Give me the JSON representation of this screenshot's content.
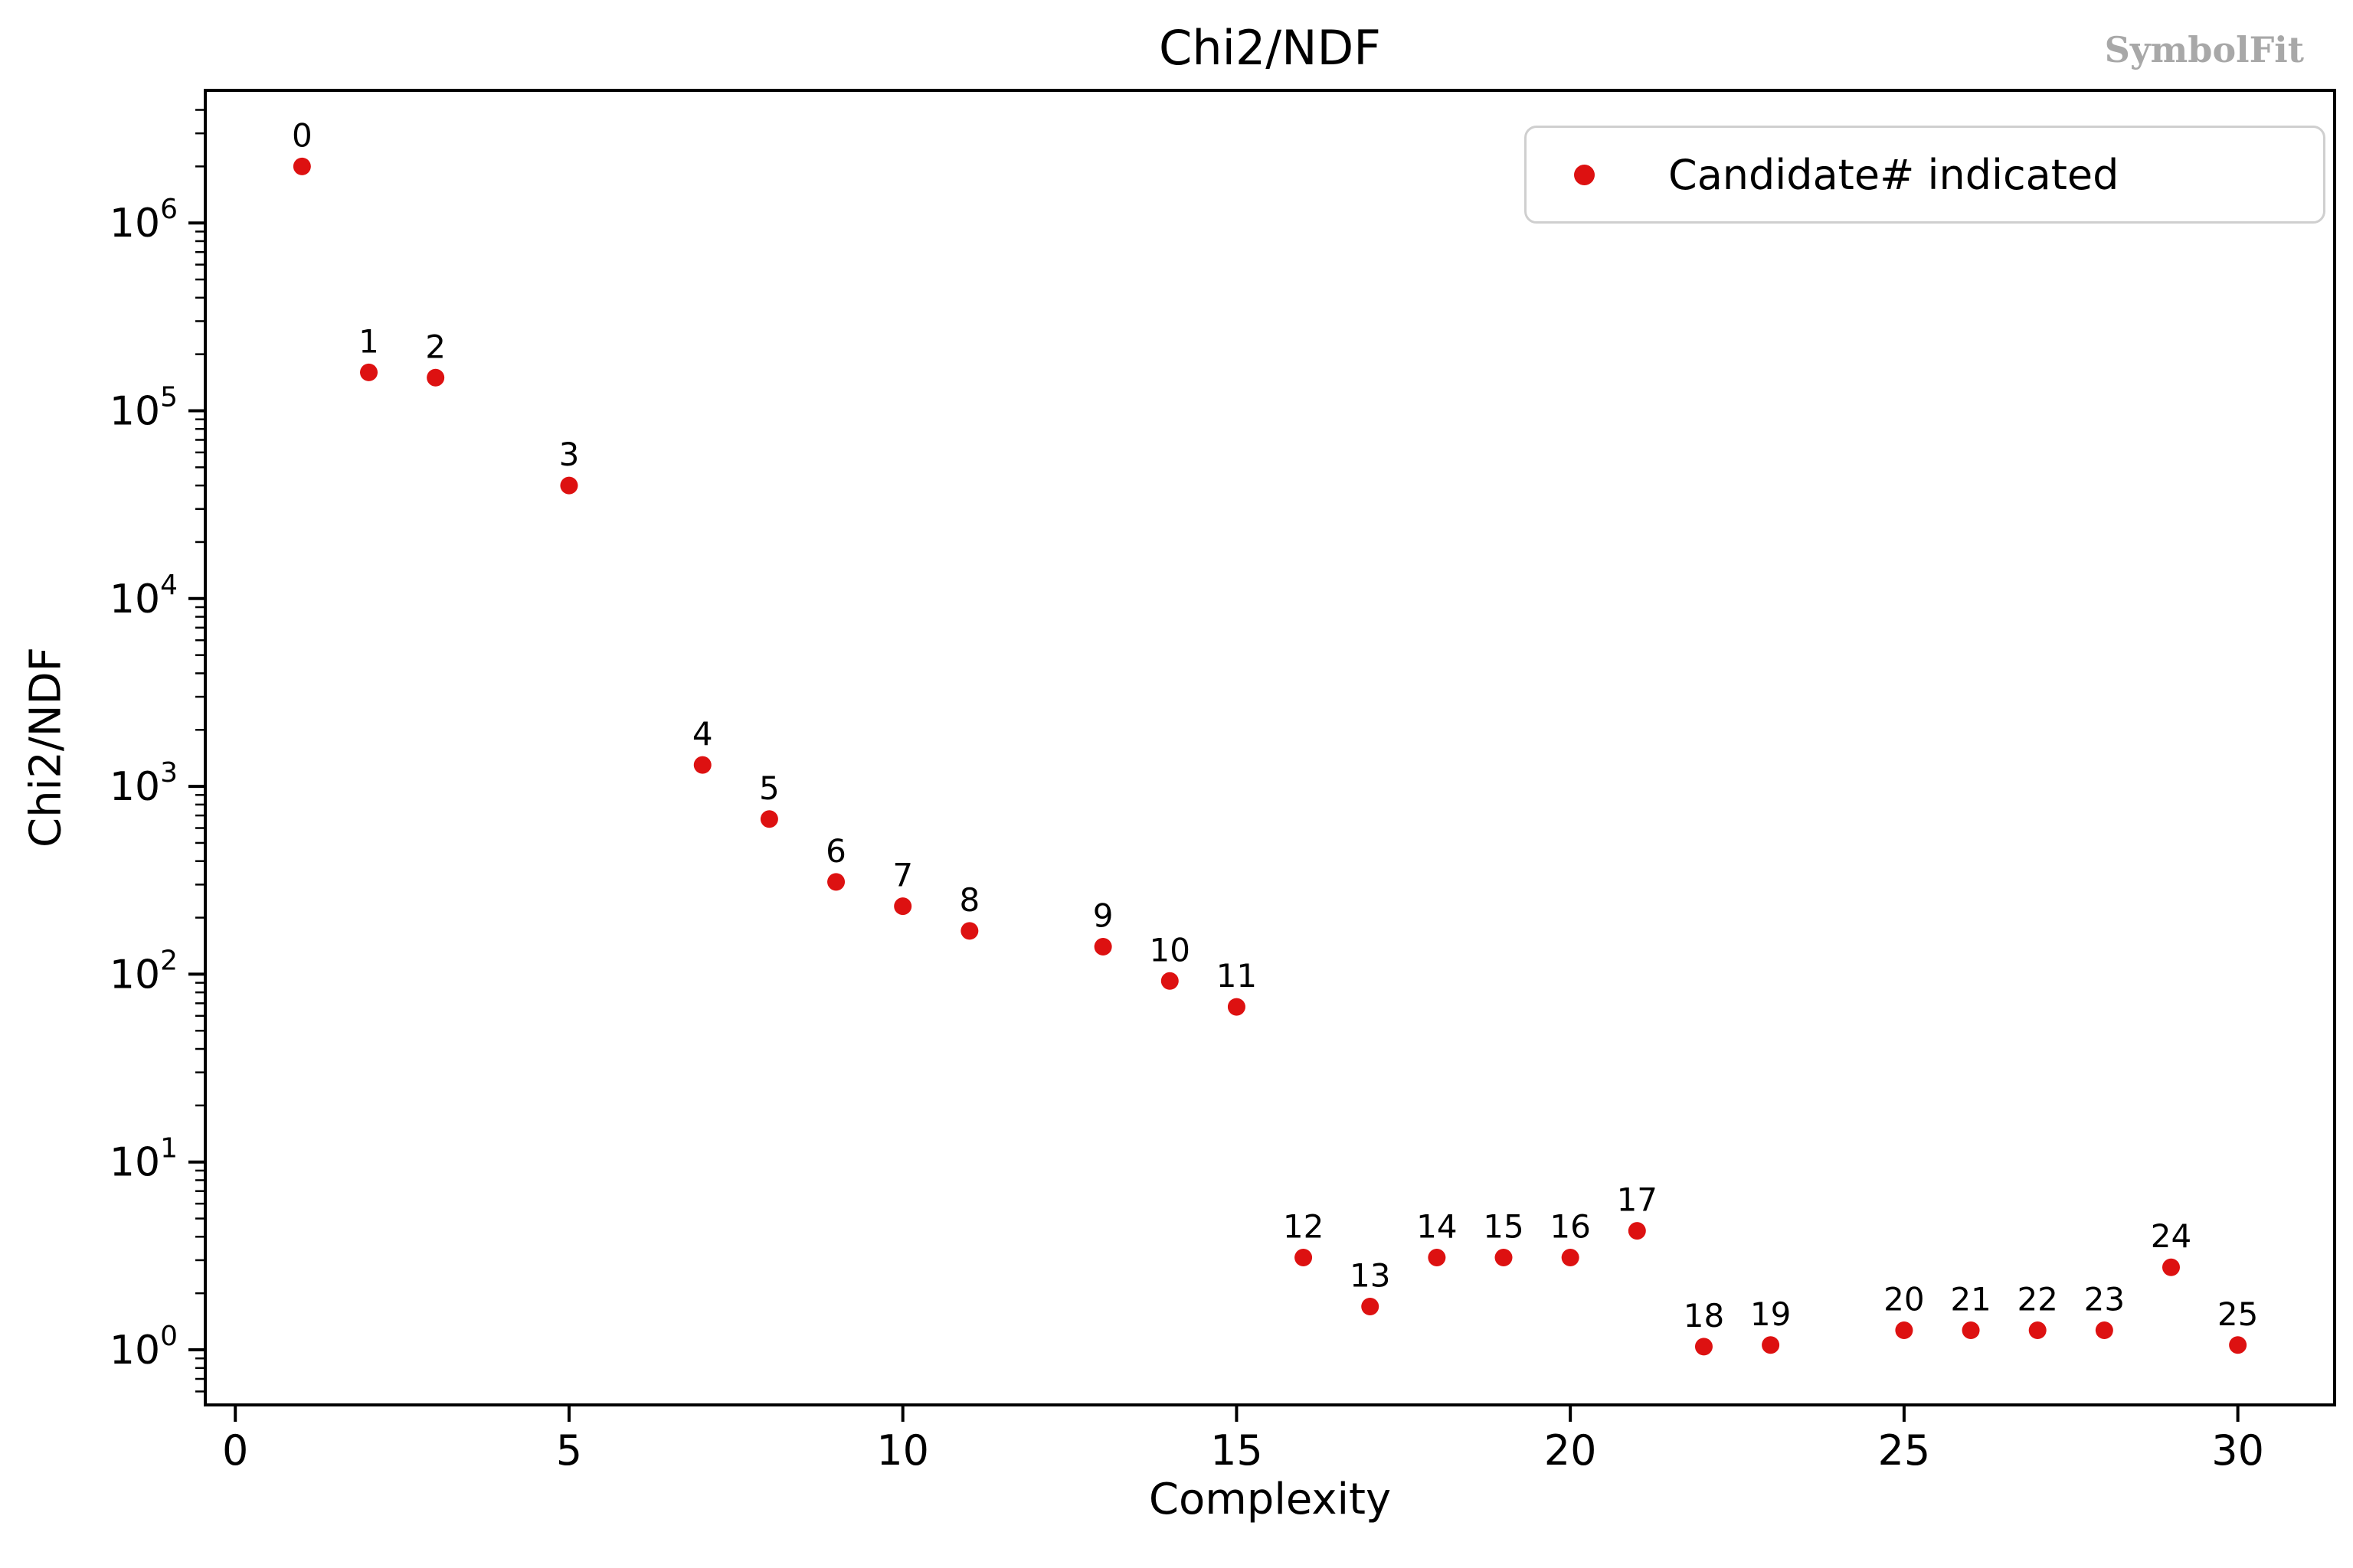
{
  "figure": {
    "title": "Chi2/NDF",
    "watermark": "SymbolFit"
  },
  "chart_data": {
    "type": "scatter",
    "title": "Chi2/NDF",
    "xlabel": "Complexity",
    "ylabel": "Chi2/NDF",
    "watermark": "SymbolFit",
    "yscale": "log",
    "grid": false,
    "legend": {
      "label": "Candidate# indicated",
      "position": "upper right",
      "marker": "red-dot"
    },
    "marker_color": "#dd1111",
    "xlim": [
      -0.45,
      31.45
    ],
    "ylim": [
      0.505,
      5100000
    ],
    "x_ticks": [
      0,
      5,
      10,
      15,
      20,
      25,
      30
    ],
    "y_tick_exponents": [
      0,
      1,
      2,
      3,
      4,
      5,
      6
    ],
    "points": [
      {
        "candidate": "0",
        "x": 1,
        "y": 2000000
      },
      {
        "candidate": "1",
        "x": 2,
        "y": 160000
      },
      {
        "candidate": "2",
        "x": 3,
        "y": 150000
      },
      {
        "candidate": "3",
        "x": 5,
        "y": 40000
      },
      {
        "candidate": "4",
        "x": 7,
        "y": 1300
      },
      {
        "candidate": "5",
        "x": 8,
        "y": 670
      },
      {
        "candidate": "6",
        "x": 9,
        "y": 310
      },
      {
        "candidate": "7",
        "x": 10,
        "y": 230
      },
      {
        "candidate": "8",
        "x": 11,
        "y": 170
      },
      {
        "candidate": "9",
        "x": 13,
        "y": 140
      },
      {
        "candidate": "10",
        "x": 14,
        "y": 92
      },
      {
        "candidate": "11",
        "x": 15,
        "y": 67
      },
      {
        "candidate": "12",
        "x": 16,
        "y": 3.1
      },
      {
        "candidate": "13",
        "x": 17,
        "y": 1.7
      },
      {
        "candidate": "14",
        "x": 18,
        "y": 3.1
      },
      {
        "candidate": "15",
        "x": 19,
        "y": 3.1
      },
      {
        "candidate": "16",
        "x": 20,
        "y": 3.1
      },
      {
        "candidate": "17",
        "x": 21,
        "y": 4.3
      },
      {
        "candidate": "18",
        "x": 22,
        "y": 1.04
      },
      {
        "candidate": "19",
        "x": 23,
        "y": 1.06
      },
      {
        "candidate": "20",
        "x": 25,
        "y": 1.27
      },
      {
        "candidate": "21",
        "x": 26,
        "y": 1.27
      },
      {
        "candidate": "22",
        "x": 27,
        "y": 1.27
      },
      {
        "candidate": "23",
        "x": 28,
        "y": 1.27
      },
      {
        "candidate": "24",
        "x": 29,
        "y": 2.75
      },
      {
        "candidate": "25",
        "x": 30,
        "y": 1.06
      }
    ]
  }
}
